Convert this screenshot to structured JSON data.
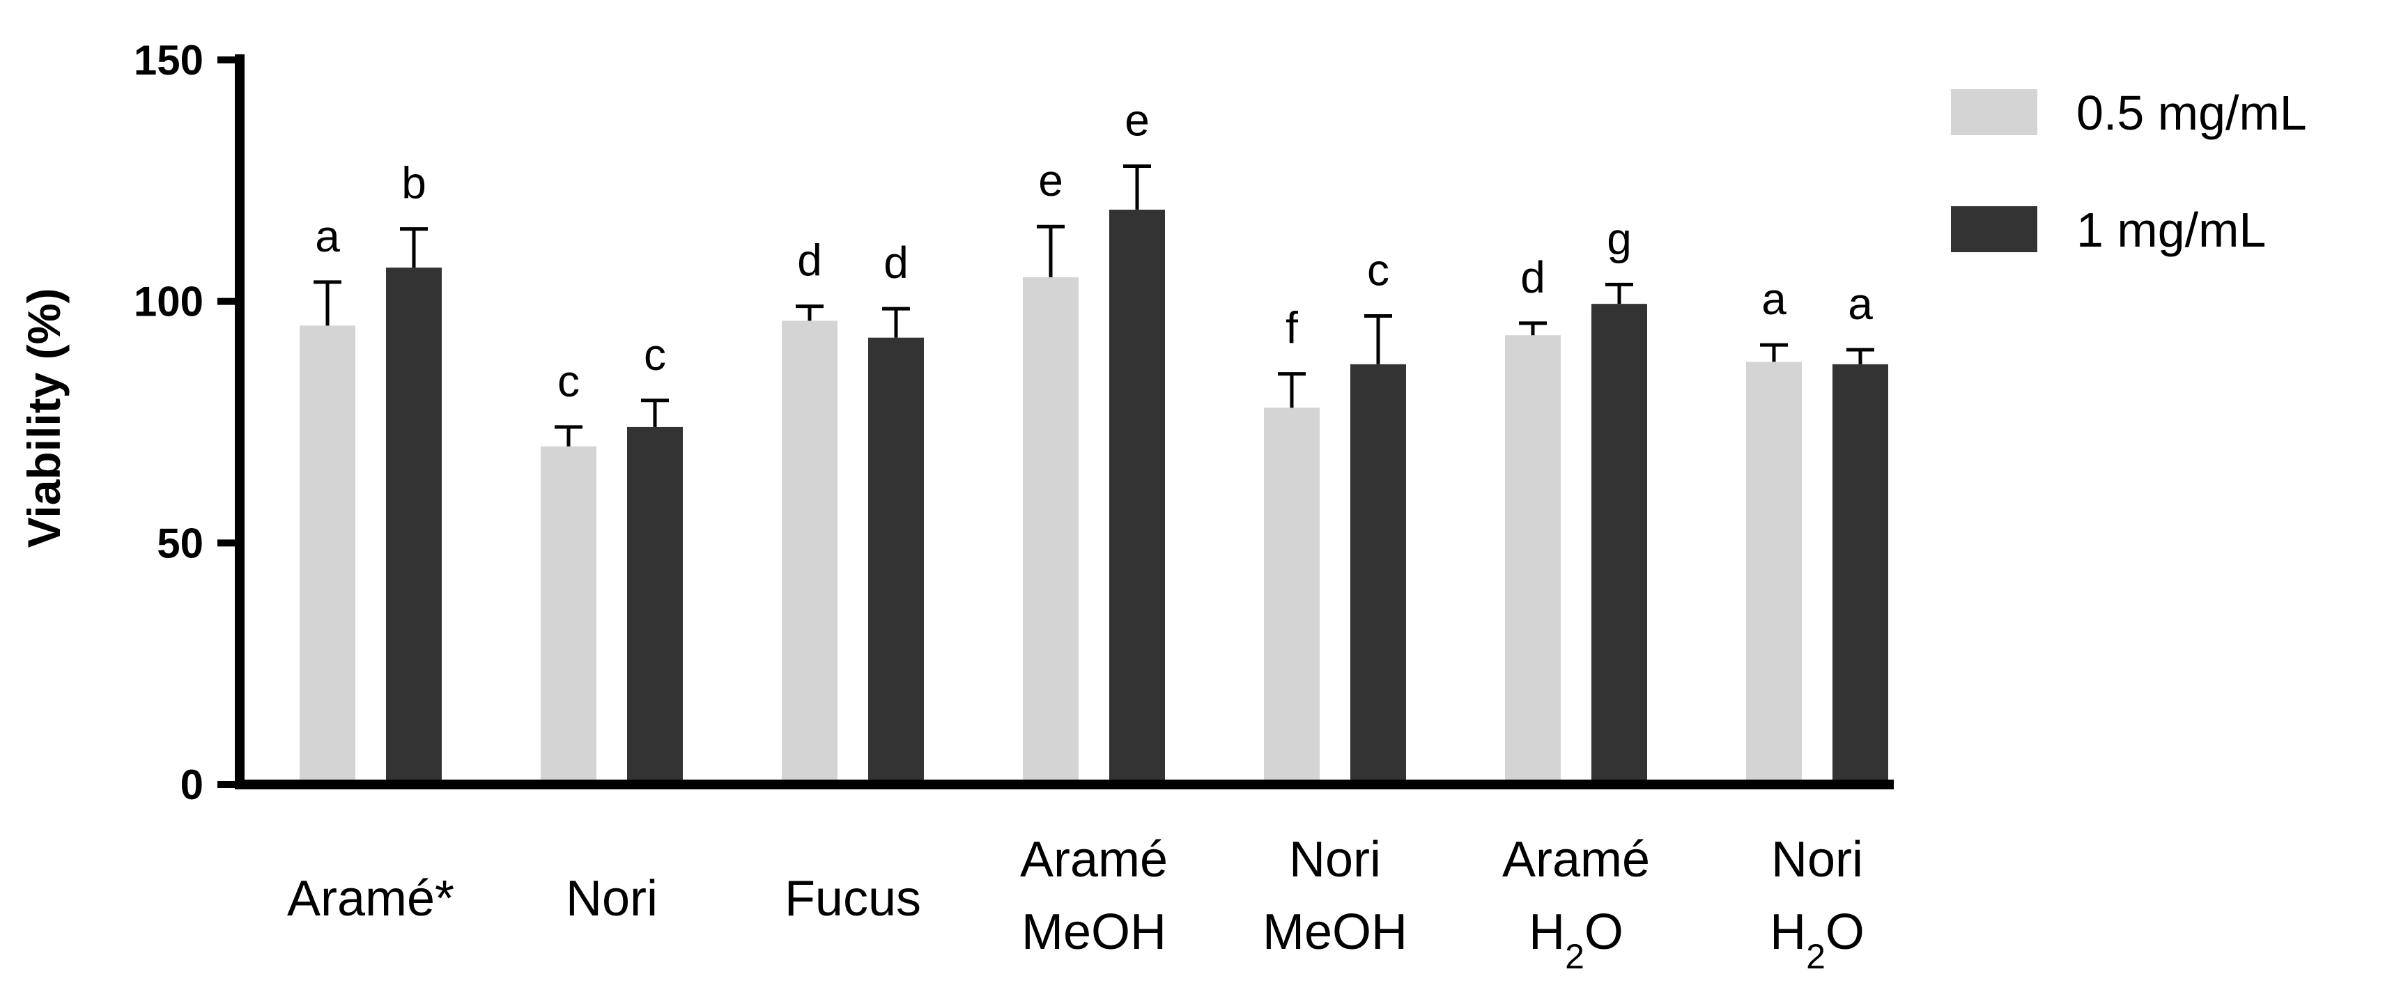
{
  "chart_data": {
    "type": "bar",
    "ylabel": "Viability (%)",
    "xlabel": "",
    "ylim": [
      0,
      150
    ],
    "yticks": [
      0,
      50,
      100,
      150
    ],
    "grid": false,
    "legend_position": "top-right",
    "categories": [
      {
        "line1": "Aramé*",
        "line2": ""
      },
      {
        "line1": "Nori",
        "line2": ""
      },
      {
        "line1": "Fucus",
        "line2": ""
      },
      {
        "line1": "Aramé",
        "line2": "MeOH"
      },
      {
        "line1": "Nori",
        "line2": "MeOH"
      },
      {
        "line1": "Aramé",
        "line2": "H2O"
      },
      {
        "line1": "Nori",
        "line2": "H2O"
      }
    ],
    "series": [
      {
        "name": "0.5 mg/mL",
        "color": "#d4d4d4",
        "values": [
          95,
          70,
          96,
          105,
          78,
          93,
          87.5
        ],
        "errors": [
          9,
          4,
          3,
          10.5,
          7,
          2.5,
          3.5
        ],
        "letters": [
          "a",
          "c",
          "d",
          "e",
          "f",
          "d",
          "a"
        ]
      },
      {
        "name": "1 mg/mL",
        "color": "#333333",
        "values": [
          107,
          74,
          92.5,
          119,
          87,
          99.5,
          87
        ],
        "errors": [
          8,
          5.5,
          6,
          9,
          10,
          4,
          3
        ],
        "letters": [
          "b",
          "c",
          "d",
          "e",
          "c",
          "g",
          "a"
        ]
      }
    ]
  }
}
